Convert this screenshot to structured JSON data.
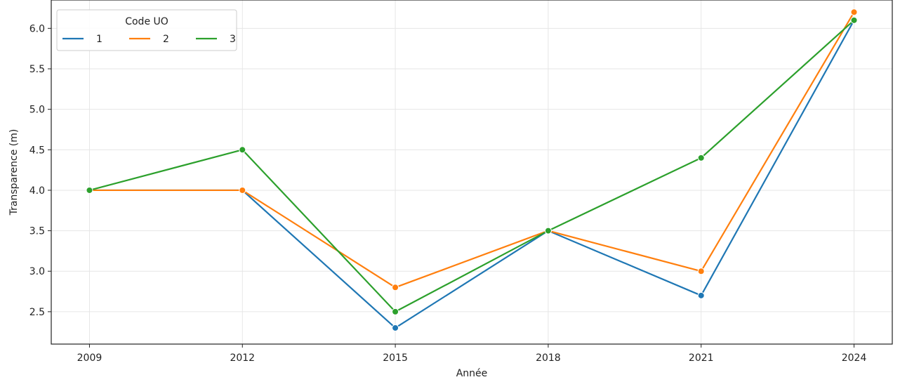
{
  "chart_data": {
    "type": "line",
    "title": "",
    "xlabel": "Année",
    "ylabel": "Transparence (m)",
    "x": [
      2009,
      2012,
      2015,
      2018,
      2021,
      2024
    ],
    "xticks": [
      "2009",
      "2012",
      "2015",
      "2018",
      "2021",
      "2024"
    ],
    "yticks": [
      "2.5",
      "3.0",
      "3.5",
      "4.0",
      "4.5",
      "5.0",
      "5.5",
      "6.0"
    ],
    "ylim": [
      2.1,
      6.35
    ],
    "grid": true,
    "legend": {
      "title": "Code UO",
      "placement": "top-left"
    },
    "series": [
      {
        "name": "1",
        "color": "#1f77b4",
        "values": [
          4.0,
          4.0,
          2.3,
          3.5,
          2.7,
          6.1
        ]
      },
      {
        "name": "2",
        "color": "#ff7f0e",
        "values": [
          4.0,
          4.0,
          2.8,
          3.5,
          3.0,
          6.2
        ]
      },
      {
        "name": "3",
        "color": "#2ca02c",
        "values": [
          4.0,
          4.5,
          2.5,
          3.5,
          4.4,
          6.1
        ]
      }
    ]
  }
}
